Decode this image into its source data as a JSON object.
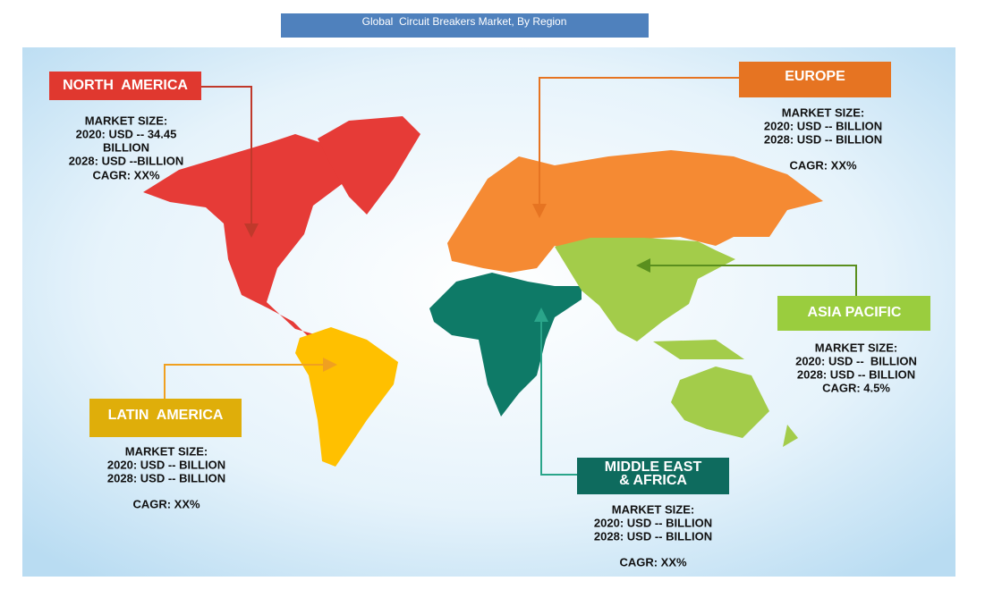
{
  "title": "Global  Circuit Breakers Market, By Region",
  "regions": [
    {
      "name": [
        "NORTH  AMERICA"
      ],
      "lines": [
        "MARKET SIZE:",
        "2020: USD -- 34.45",
        "BILLION",
        "2028: USD --BILLION"
      ],
      "cagr": "CAGR: XX%"
    },
    {
      "name": [
        "EUROPE"
      ],
      "lines": [
        "MARKET SIZE:",
        "2020: USD -- BILLION",
        "2028: USD -- BILLION"
      ],
      "cagr": "CAGR: XX%"
    },
    {
      "name": [
        "ASIA PACIFIC"
      ],
      "lines": [
        "MARKET SIZE:",
        "2020: USD --  BILLION",
        "2028: USD -- BILLION"
      ],
      "cagr": "CAGR: 4.5%"
    },
    {
      "name": [
        "LATIN  AMERICA"
      ],
      "lines": [
        "MARKET SIZE:",
        "2020: USD -- BILLION",
        "2028: USD -- BILLION"
      ],
      "cagr": "CAGR: XX%"
    },
    {
      "name": [
        "MIDDLE EAST",
        "& AFRICA"
      ],
      "lines": [
        "MARKET SIZE:",
        "2020: USD -- BILLION",
        "2028: USD -- BILLION"
      ],
      "cagr": "CAGR: XX%"
    }
  ]
}
